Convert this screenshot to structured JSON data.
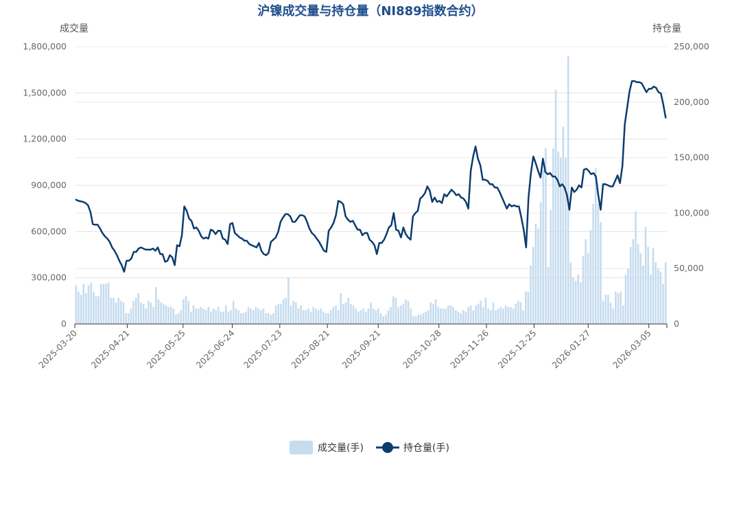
{
  "chart_data": {
    "type": "bar+line",
    "title": "沪镍成交量与持仓量（NI889指数合约）",
    "left_axis_name": "成交量",
    "right_axis_name": "持仓量",
    "y_left": {
      "min": 0,
      "max": 1800000,
      "ticks": [
        "0",
        "300,000",
        "600,000",
        "900,000",
        "1,200,000",
        "1,500,000",
        "1,800,000"
      ]
    },
    "y_right": {
      "min": 0,
      "max": 250000,
      "ticks": [
        "0",
        "50,000",
        "100,000",
        "150,000",
        "200,000",
        "250,000"
      ]
    },
    "x_start": "2025-03-20",
    "x_end": "2026-03-16",
    "x_ticks": [
      "2025-03-20",
      "2025-04-21",
      "2025-05-25",
      "2025-06-24",
      "2025-07-23",
      "2025-08-21",
      "2025-09-21",
      "2025-10-28",
      "2025-11-26",
      "2025-12-25",
      "2026-01-27",
      "2026-03-05"
    ],
    "series": [
      {
        "name": "成交量(手)",
        "kind": "bar",
        "axis": "left",
        "color": "#c6dcef",
        "values": [
          250000,
          210000,
          190000,
          260000,
          200000,
          250000,
          270000,
          210000,
          180000,
          180000,
          260000,
          260000,
          260000,
          270000,
          170000,
          170000,
          140000,
          170000,
          150000,
          140000,
          70000,
          70000,
          100000,
          150000,
          170000,
          200000,
          140000,
          130000,
          100000,
          150000,
          140000,
          110000,
          240000,
          160000,
          140000,
          130000,
          120000,
          110000,
          110000,
          100000,
          60000,
          70000,
          90000,
          160000,
          180000,
          150000,
          80000,
          120000,
          100000,
          100000,
          110000,
          100000,
          90000,
          110000,
          80000,
          100000,
          90000,
          110000,
          80000,
          80000,
          120000,
          80000,
          90000,
          150000,
          100000,
          90000,
          70000,
          70000,
          80000,
          110000,
          100000,
          90000,
          110000,
          100000,
          90000,
          100000,
          70000,
          70000,
          60000,
          70000,
          120000,
          130000,
          130000,
          160000,
          170000,
          300000,
          120000,
          150000,
          140000,
          100000,
          120000,
          90000,
          90000,
          100000,
          80000,
          110000,
          100000,
          90000,
          100000,
          80000,
          70000,
          70000,
          90000,
          110000,
          120000,
          90000,
          200000,
          130000,
          140000,
          170000,
          130000,
          120000,
          100000,
          80000,
          90000,
          100000,
          80000,
          100000,
          140000,
          100000,
          90000,
          100000,
          70000,
          50000,
          60000,
          90000,
          110000,
          180000,
          170000,
          110000,
          120000,
          130000,
          160000,
          150000,
          100000,
          50000,
          50000,
          60000,
          60000,
          70000,
          80000,
          90000,
          140000,
          130000,
          160000,
          110000,
          100000,
          100000,
          100000,
          120000,
          120000,
          110000,
          90000,
          80000,
          70000,
          90000,
          80000,
          110000,
          120000,
          90000,
          120000,
          130000,
          150000,
          110000,
          170000,
          100000,
          90000,
          140000,
          90000,
          100000,
          110000,
          100000,
          120000,
          110000,
          110000,
          100000,
          130000,
          150000,
          140000,
          90000,
          210000,
          210000,
          380000,
          500000,
          650000,
          620000,
          790000,
          1000000,
          1140000,
          370000,
          740000,
          1140000,
          1520000,
          1120000,
          1080000,
          1280000,
          1080000,
          1740000,
          400000,
          300000,
          280000,
          320000,
          270000,
          440000,
          550000,
          460000,
          610000,
          780000,
          1010000,
          780000,
          660000,
          150000,
          190000,
          190000,
          140000,
          100000,
          210000,
          200000,
          210000,
          120000,
          320000,
          360000,
          500000,
          550000,
          730000,
          520000,
          460000,
          380000,
          630000,
          500000,
          320000,
          490000,
          400000,
          360000,
          340000,
          260000,
          400000
        ]
      },
      {
        "name": "持仓量(手)",
        "kind": "line",
        "axis": "right",
        "color": "#0c3b6e",
        "values": [
          112000,
          111000,
          110500,
          110000,
          109000,
          107000,
          101000,
          90000,
          89500,
          89500,
          86000,
          82000,
          79000,
          77000,
          74000,
          69000,
          66000,
          62000,
          57000,
          53000,
          47000,
          57000,
          57000,
          59000,
          65000,
          65000,
          68000,
          69000,
          68000,
          67000,
          67000,
          67000,
          68000,
          66000,
          69000,
          63000,
          63000,
          56000,
          57000,
          62000,
          60000,
          53000,
          71000,
          70000,
          80000,
          106000,
          102000,
          95000,
          93000,
          86000,
          87000,
          84000,
          79000,
          77000,
          78000,
          77000,
          85000,
          84000,
          81000,
          84000,
          84000,
          77000,
          76000,
          72000,
          90000,
          91000,
          82000,
          80000,
          78000,
          77000,
          75000,
          75000,
          72000,
          71000,
          70000,
          69000,
          73000,
          66000,
          63000,
          62000,
          64000,
          74000,
          76000,
          78000,
          83000,
          92000,
          96000,
          99000,
          99000,
          97000,
          92000,
          92000,
          95000,
          98000,
          98000,
          97000,
          92000,
          86000,
          82000,
          80000,
          77000,
          74000,
          70000,
          66000,
          65000,
          84000,
          87000,
          91000,
          98000,
          111000,
          110000,
          108000,
          97000,
          94000,
          92000,
          93000,
          89000,
          85000,
          85000,
          80000,
          82000,
          82000,
          76000,
          74000,
          71000,
          63000,
          73000,
          73000,
          76000,
          81000,
          87000,
          89000,
          100000,
          85000,
          84000,
          78000,
          87000,
          81000,
          78000,
          76000,
          97000,
          100000,
          102000,
          113000,
          115000,
          118000,
          124000,
          120000,
          110000,
          114000,
          110000,
          111000,
          109000,
          117000,
          115000,
          118000,
          121000,
          119000,
          116000,
          117000,
          114000,
          113000,
          110000,
          104000,
          138000,
          151000,
          160000,
          149000,
          143000,
          130000,
          130000,
          129000,
          126000,
          126000,
          123000,
          123000,
          119000,
          114000,
          109000,
          104000,
          108000,
          106000,
          107000,
          106000,
          106000,
          96000,
          85000,
          69000,
          114000,
          136000,
          151000,
          145000,
          138000,
          132000,
          149000,
          137000,
          135000,
          136000,
          133000,
          133000,
          130000,
          124000,
          126000,
          123000,
          116000,
          103000,
          123000,
          119000,
          121000,
          125000,
          123000,
          139000,
          140000,
          138000,
          135000,
          136000,
          133000,
          116000,
          103000,
          126000,
          126000,
          125000,
          124000,
          124000,
          129000,
          134000,
          127000,
          142000,
          180000,
          195000,
          210000,
          219000,
          219000,
          218000,
          218000,
          217000,
          213000,
          209000,
          212000,
          212000,
          214000,
          213000,
          209000,
          208000,
          198000,
          186000
        ]
      }
    ],
    "legend": {
      "placement": "bottom-center",
      "items": [
        "成交量(手)",
        "持仓量(手)"
      ]
    },
    "grid": true
  }
}
